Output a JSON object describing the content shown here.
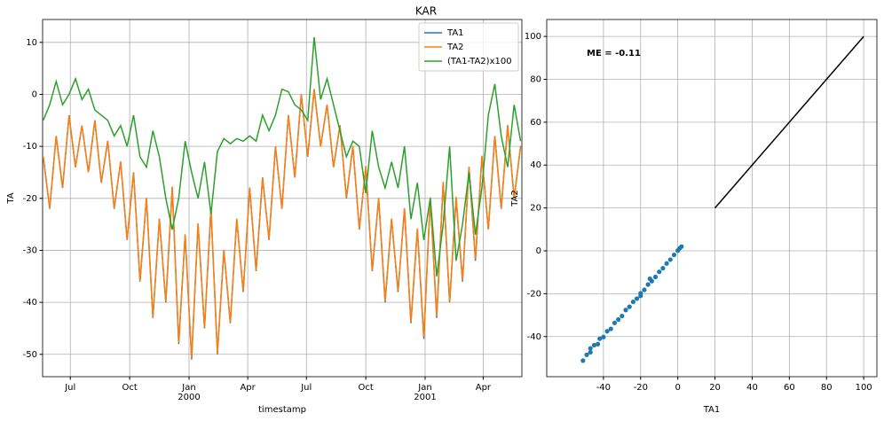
{
  "chart_data": [
    {
      "type": "line",
      "title": "KAR",
      "xlabel": "timestamp",
      "ylabel": "TA",
      "x": [
        "1999-05-20",
        "1999-05-30",
        "1999-06-09",
        "1999-06-19",
        "1999-06-29",
        "1999-07-09",
        "1999-07-19",
        "1999-07-29",
        "1999-08-08",
        "1999-08-18",
        "1999-08-28",
        "1999-09-07",
        "1999-09-17",
        "1999-09-27",
        "1999-10-07",
        "1999-10-17",
        "1999-10-27",
        "1999-11-06",
        "1999-11-16",
        "1999-11-26",
        "1999-12-06",
        "1999-12-16",
        "1999-12-26",
        "2000-01-05",
        "2000-01-15",
        "2000-01-25",
        "2000-02-04",
        "2000-02-14",
        "2000-02-24",
        "2000-03-05",
        "2000-03-15",
        "2000-03-25",
        "2000-04-04",
        "2000-04-14",
        "2000-04-24",
        "2000-05-04",
        "2000-05-14",
        "2000-05-24",
        "2000-06-03",
        "2000-06-13",
        "2000-06-23",
        "2000-07-03",
        "2000-07-13",
        "2000-07-23",
        "2000-08-02",
        "2000-08-12",
        "2000-08-22",
        "2000-09-01",
        "2000-09-11",
        "2000-09-21",
        "2000-10-01",
        "2000-10-11",
        "2000-10-21",
        "2000-10-31",
        "2000-11-10",
        "2000-11-20",
        "2000-11-30",
        "2000-12-10",
        "2000-12-20",
        "2000-12-30",
        "2001-01-09",
        "2001-01-19",
        "2001-01-29",
        "2001-02-08",
        "2001-02-18",
        "2001-02-28",
        "2001-03-10",
        "2001-03-20",
        "2001-03-30",
        "2001-04-09",
        "2001-04-19",
        "2001-04-29",
        "2001-05-09",
        "2001-05-19",
        "2001-05-29"
      ],
      "series": [
        {
          "name": "TA1",
          "color": "#1f77b4",
          "values": [
            -12,
            -22,
            -8,
            -18,
            -4,
            -14,
            -6,
            -15,
            -5,
            -17,
            -9,
            -22,
            -13,
            -28,
            -15,
            -36,
            -20,
            -43,
            -24,
            -40,
            -18,
            -48,
            -27,
            -51,
            -25,
            -45,
            -22,
            -50,
            -30,
            -44,
            -24,
            -38,
            -18,
            -34,
            -16,
            -28,
            -10,
            -22,
            -4,
            -16,
            0,
            -12,
            1,
            -10,
            -2,
            -14,
            -6,
            -20,
            -10,
            -26,
            -14,
            -34,
            -20,
            -40,
            -24,
            -38,
            -22,
            -44,
            -26,
            -47,
            -20,
            -43,
            -17,
            -40,
            -20,
            -36,
            -14,
            -32,
            -12,
            -26,
            -8,
            -22,
            -6,
            -20,
            -10
          ]
        },
        {
          "name": "TA2",
          "color": "#ff7f0e",
          "values": [
            -11.9,
            -21.9,
            -8,
            -17.9,
            -4.1,
            -14,
            -6,
            -15,
            -5,
            -16.9,
            -8.9,
            -21.9,
            -12.9,
            -27.9,
            -15,
            -35.9,
            -19.9,
            -42.9,
            -23.9,
            -39.8,
            -17.7,
            -47.8,
            -26.9,
            -50.8,
            -24.8,
            -44.9,
            -21.8,
            -49.9,
            -29.9,
            -43.9,
            -23.9,
            -37.9,
            -17.9,
            -33.9,
            -16,
            -27.9,
            -10,
            -22,
            -4,
            -16,
            0,
            -11.9,
            0.9,
            -10,
            -2,
            -14,
            -5.9,
            -19.9,
            -9.9,
            -25.9,
            -13.8,
            -33.9,
            -19.9,
            -39.8,
            -23.9,
            -37.8,
            -21.9,
            -43.8,
            -25.8,
            -46.7,
            -19.8,
            -42.7,
            -16.8,
            -39.9,
            -19.7,
            -35.8,
            -13.9,
            -31.7,
            -11.8,
            -26,
            -8,
            -21.9,
            -5.9,
            -20,
            -9.9
          ]
        },
        {
          "name": "(TA1-TA2)x100",
          "color": "#2ca02c",
          "values": [
            -5,
            -2,
            2.5,
            -2,
            0,
            3,
            -1,
            1,
            -3,
            -4,
            -5,
            -8,
            -6,
            -10,
            -4,
            -12,
            -14,
            -7,
            -12,
            -20,
            -26,
            -20,
            -9,
            -15,
            -20,
            -13,
            -23,
            -11,
            -8.5,
            -9.5,
            -8.5,
            -9,
            -8,
            -9,
            -4,
            -7,
            -4,
            1,
            0.5,
            -2,
            -3,
            -5,
            11,
            -1,
            3,
            -2,
            -7,
            -12,
            -9,
            -10,
            -19,
            -7,
            -14,
            -18,
            -13,
            -18,
            -10,
            -24,
            -17,
            -28,
            -20,
            -35,
            -25,
            -10,
            -32,
            -25,
            -15,
            -27,
            -18,
            -4,
            2,
            -8,
            -14,
            -2,
            -9
          ]
        }
      ],
      "xlim": [
        "1999-05-19",
        "2001-05-31"
      ],
      "xticks": [
        {
          "value": "1999-07-01",
          "label": "Jul"
        },
        {
          "value": "1999-10-01",
          "label": "Oct"
        },
        {
          "value": "2000-01-01",
          "label": [
            "Jan",
            "2000"
          ]
        },
        {
          "value": "2000-04-01",
          "label": "Apr"
        },
        {
          "value": "2000-07-01",
          "label": "Jul"
        },
        {
          "value": "2000-10-01",
          "label": "Oct"
        },
        {
          "value": "2001-01-01",
          "label": [
            "Jan",
            "2001"
          ]
        },
        {
          "value": "2001-04-01",
          "label": "Apr"
        }
      ],
      "ylim": [
        -54.3,
        14.4
      ],
      "yticks": [
        -50,
        -40,
        -30,
        -20,
        -10,
        0,
        10
      ],
      "grid": true,
      "legend": "upper right"
    },
    {
      "type": "scatter",
      "xlabel": "TA1",
      "ylabel": "TA2",
      "annotation": "ME = -0.11",
      "color": "#1f77b4",
      "x": [
        -51,
        -49,
        -47,
        -45,
        -43,
        -42,
        -40,
        -38,
        -36,
        -34,
        -32,
        -30,
        -28,
        -26,
        -24,
        -22,
        -20,
        -18,
        -16,
        -14,
        -12,
        -10,
        -8,
        -6,
        -4,
        -2,
        0,
        1,
        2,
        -15,
        -47,
        -20
      ],
      "y": [
        -51.2,
        -48.5,
        -47.3,
        -44,
        -43.5,
        -41,
        -40.2,
        -37.5,
        -36.4,
        -33.6,
        -32,
        -30.4,
        -27.6,
        -26.1,
        -23.8,
        -22.3,
        -19.8,
        -18.2,
        -15.7,
        -14.1,
        -12.2,
        -9.8,
        -8.1,
        -5.9,
        -4.1,
        -1.9,
        0.1,
        1.2,
        2,
        -13,
        -45.5,
        -21
      ],
      "line": {
        "x": [
          20,
          100
        ],
        "y": [
          20,
          100
        ],
        "color": "#000000"
      },
      "xlim": [
        -70.5,
        107.1
      ],
      "xticks": [
        -40,
        -20,
        0,
        20,
        40,
        60,
        80,
        100
      ],
      "ylim": [
        -58.7,
        107.9
      ],
      "yticks": [
        -40,
        -20,
        0,
        20,
        40,
        60,
        80,
        100
      ],
      "grid": true
    }
  ]
}
